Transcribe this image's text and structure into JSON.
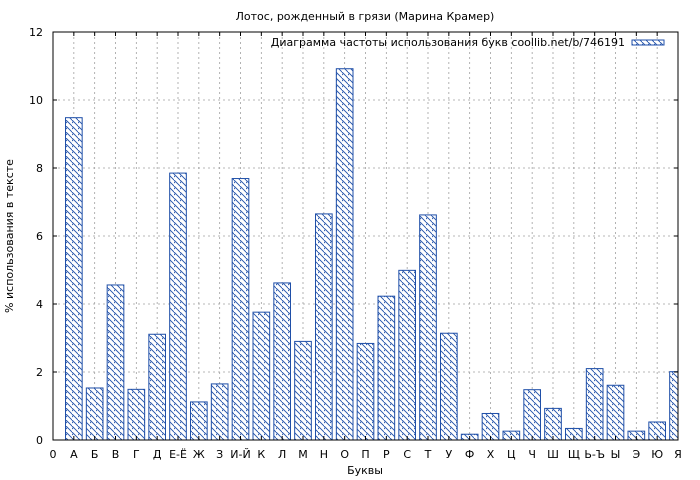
{
  "chart_data": {
    "type": "bar",
    "title": "Лотос, рожденный в грязи (Марина Крамер)",
    "xlabel": "Буквы",
    "ylabel": "% использования в тексте",
    "ylim": [
      0,
      12
    ],
    "yticks": [
      "0",
      "2",
      "4",
      "6",
      "8",
      "10",
      "12"
    ],
    "x_zero_label": "0",
    "grid": true,
    "legend_position": "top-right",
    "categories": [
      "А",
      "Б",
      "В",
      "Г",
      "Д",
      "Е-Ё",
      "Ж",
      "З",
      "И-Й",
      "К",
      "Л",
      "М",
      "Н",
      "О",
      "П",
      "Р",
      "С",
      "Т",
      "У",
      "Ф",
      "Х",
      "Ц",
      "Ч",
      "Ш",
      "Щ",
      "Ь-Ъ",
      "Ы",
      "Э",
      "Ю",
      "Я"
    ],
    "series": [
      {
        "name": "Диаграмма частоты использования букв coollib.net/b/746191",
        "values": [
          9.48,
          1.53,
          4.56,
          1.49,
          3.11,
          7.85,
          1.12,
          1.65,
          7.69,
          3.76,
          4.62,
          2.9,
          6.65,
          10.92,
          2.84,
          4.23,
          4.99,
          6.62,
          3.14,
          0.17,
          0.78,
          0.26,
          1.48,
          0.93,
          0.34,
          2.1,
          1.61,
          0.26,
          0.53,
          2.01
        ]
      }
    ],
    "colors": {
      "bar_stroke": "#1f4fa8",
      "hatch": "#1f4fa8",
      "grid": "#a0a0a0"
    }
  }
}
